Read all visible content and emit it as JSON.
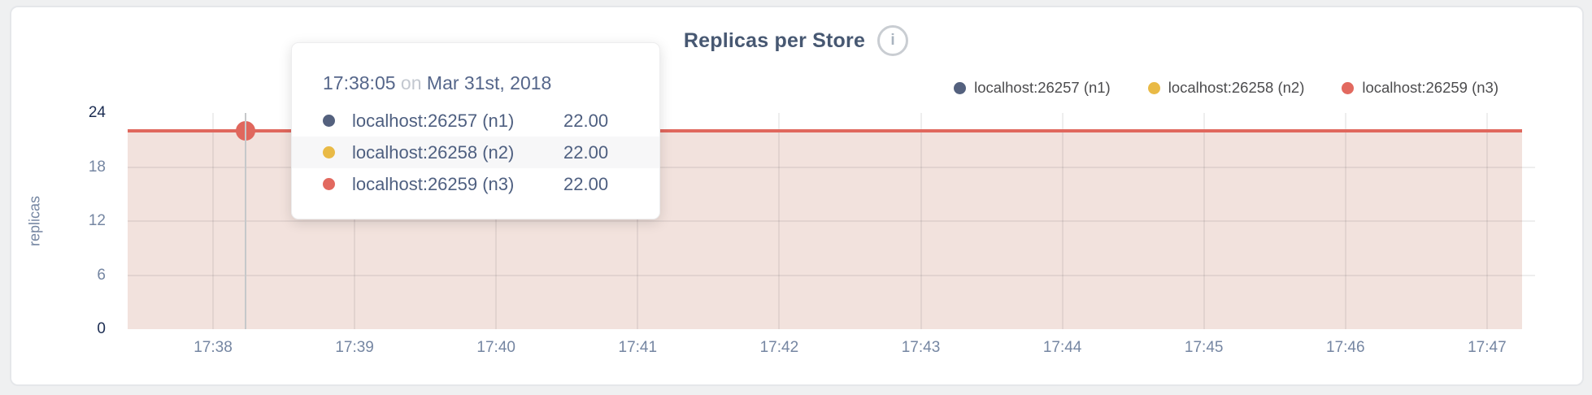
{
  "colors": {
    "page_background": "#eff0f1",
    "card_background": "#ffffff",
    "title_text": "#475872",
    "axis_text": "#7586a2",
    "axis_text_emphasis": "#1c2d52",
    "legend_text": "#4c4c4e",
    "tooltip_text": "#4e5f80",
    "tooltip_muted_text": "#c3c8d0",
    "line": "#e0675d",
    "fill": "#f2e2dd",
    "crosshair": "#c6c8ca"
  },
  "header": {
    "title": "Replicas per Store",
    "info_icon_glyph": "i"
  },
  "legend": {
    "items": [
      {
        "label": "localhost:26257 (n1)",
        "color": "#54617e"
      },
      {
        "label": "localhost:26258 (n2)",
        "color": "#e9ba46"
      },
      {
        "label": "localhost:26259 (n3)",
        "color": "#e2695f"
      }
    ]
  },
  "tooltip": {
    "time": "17:38:05",
    "connector": "on",
    "date": "Mar 31st, 2018",
    "rows": [
      {
        "label": "localhost:26257 (n1)",
        "value": "22.00",
        "color": "#54617e"
      },
      {
        "label": "localhost:26258 (n2)",
        "value": "22.00",
        "color": "#e9ba46"
      },
      {
        "label": "localhost:26259 (n3)",
        "value": "22.00",
        "color": "#e2695f"
      }
    ]
  },
  "chart_data": {
    "type": "area",
    "title": "Replicas per Store",
    "ylabel": "replicas",
    "xlabel": "",
    "x_ticks": [
      "17:38",
      "17:39",
      "17:40",
      "17:41",
      "17:42",
      "17:43",
      "17:44",
      "17:45",
      "17:46",
      "17:47"
    ],
    "y_ticks": [
      24,
      18,
      12,
      6,
      0
    ],
    "ylim": [
      0,
      24
    ],
    "grid": true,
    "legend_position": "top-right",
    "series": [
      {
        "name": "localhost:26257 (n1)",
        "color": "#54617e",
        "value_constant": 22.0
      },
      {
        "name": "localhost:26258 (n2)",
        "color": "#e9ba46",
        "value_constant": 22.0
      },
      {
        "name": "localhost:26259 (n3)",
        "color": "#e2695f",
        "value_constant": 22.0
      }
    ],
    "hovered_point": {
      "time": "17:38:05",
      "date": "Mar 31st, 2018",
      "values": [
        22.0,
        22.0,
        22.0
      ]
    }
  }
}
